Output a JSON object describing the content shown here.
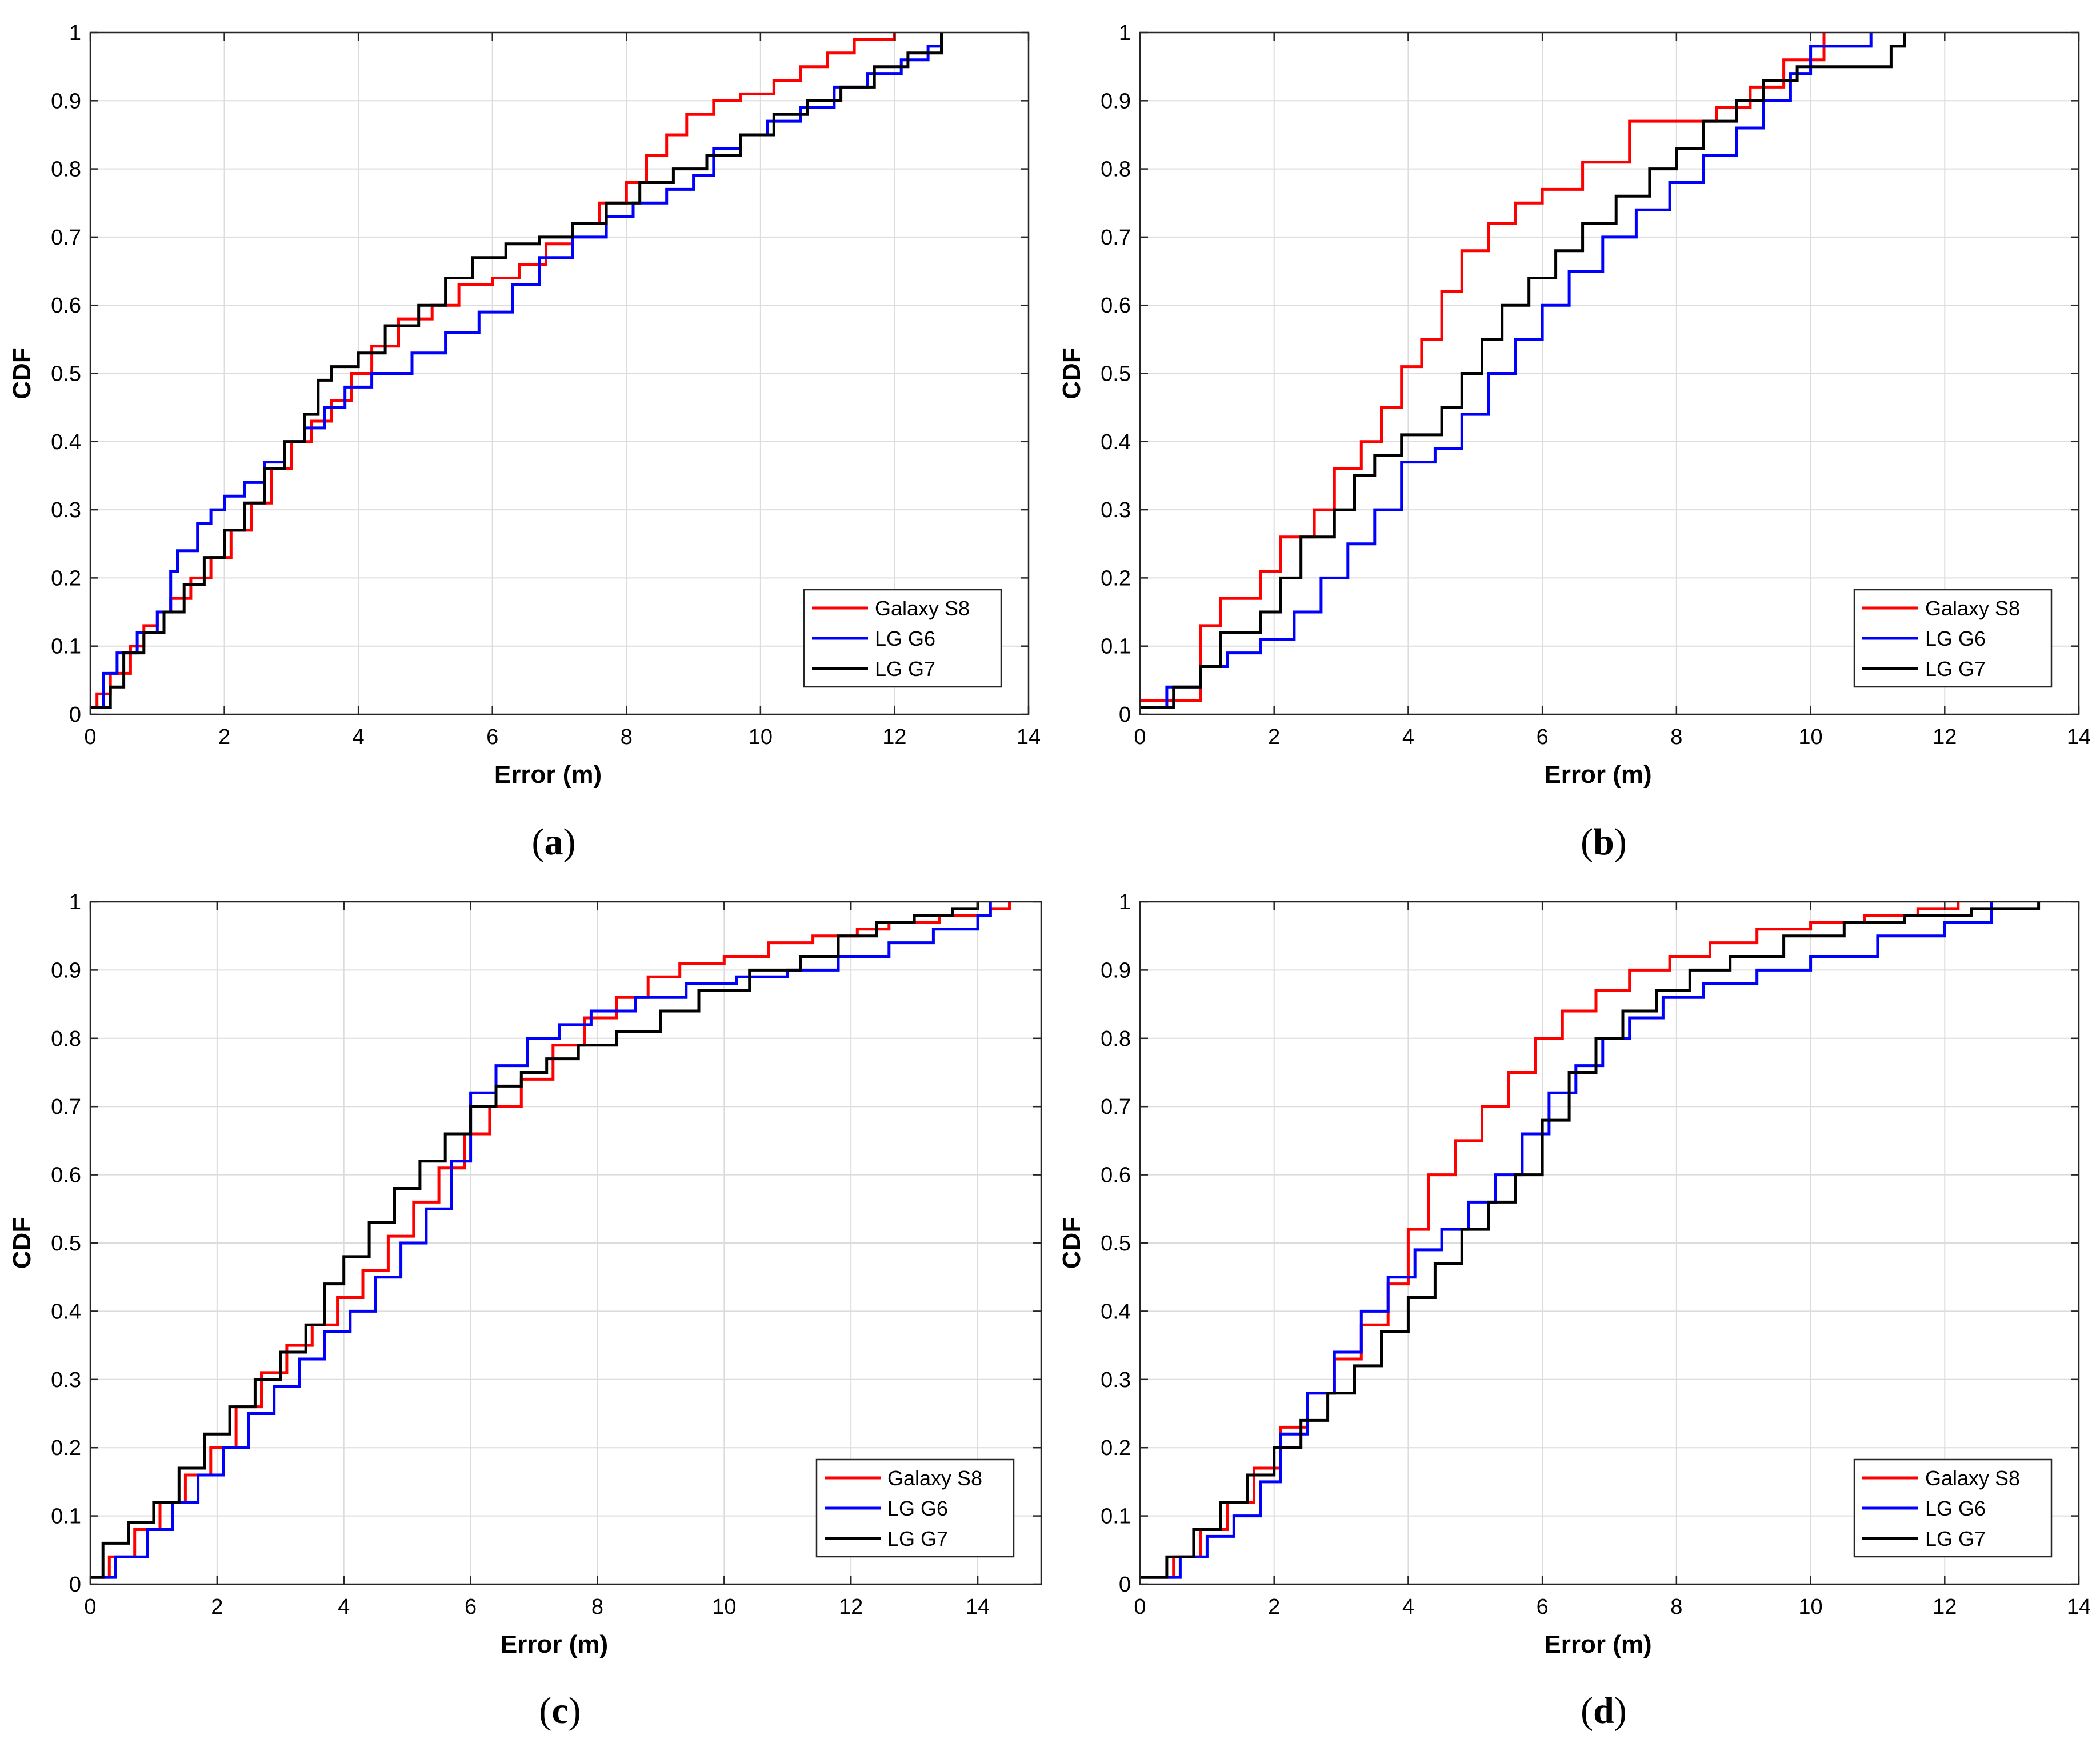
{
  "figure": {
    "series_colors": {
      "Galaxy S8": "#ff0000",
      "LG G6": "#0000ff",
      "LG G7": "#000000"
    },
    "grid": true
  },
  "chart_data": [
    {
      "panel": "a",
      "type": "line",
      "step": true,
      "caption_letter": "a",
      "xlabel": "Error (m)",
      "ylabel": "CDF",
      "xlim": [
        0,
        14
      ],
      "ylim": [
        0,
        1
      ],
      "xticks": [
        "0",
        "2",
        "4",
        "6",
        "8",
        "10",
        "12",
        "14"
      ],
      "yticks": [
        "0",
        "0.1",
        "0.2",
        "0.3",
        "0.4",
        "0.5",
        "0.6",
        "0.7",
        "0.8",
        "0.9",
        "1"
      ],
      "legend_position": "bottom-right",
      "series": [
        {
          "name": "Galaxy S8",
          "x": [
            0,
            0.1,
            0.3,
            0.6,
            0.8,
            1.0,
            1.2,
            1.5,
            1.8,
            2.1,
            2.4,
            2.7,
            3.0,
            3.3,
            3.6,
            3.9,
            4.2,
            4.6,
            5.1,
            5.5,
            6.0,
            6.4,
            6.8,
            7.2,
            7.6,
            8.0,
            8.3,
            8.6,
            8.9,
            9.3,
            9.7,
            10.2,
            10.6,
            11.0,
            11.4,
            11.9,
            12.0
          ],
          "y": [
            0.01,
            0.03,
            0.06,
            0.1,
            0.13,
            0.15,
            0.17,
            0.2,
            0.23,
            0.27,
            0.31,
            0.36,
            0.4,
            0.43,
            0.46,
            0.5,
            0.54,
            0.58,
            0.6,
            0.63,
            0.64,
            0.66,
            0.69,
            0.72,
            0.75,
            0.78,
            0.82,
            0.85,
            0.88,
            0.9,
            0.91,
            0.93,
            0.95,
            0.97,
            0.99,
            0.99,
            1.0
          ]
        },
        {
          "name": "LG G6",
          "x": [
            0,
            0.2,
            0.4,
            0.7,
            1.0,
            1.2,
            1.3,
            1.6,
            1.8,
            2.0,
            2.3,
            2.6,
            2.9,
            3.2,
            3.5,
            3.8,
            4.2,
            4.8,
            5.3,
            5.8,
            6.3,
            6.7,
            7.2,
            7.7,
            8.1,
            8.6,
            9.0,
            9.3,
            9.7,
            10.1,
            10.6,
            11.1,
            11.6,
            12.1,
            12.5,
            12.7
          ],
          "y": [
            0.01,
            0.06,
            0.09,
            0.12,
            0.15,
            0.21,
            0.24,
            0.28,
            0.3,
            0.32,
            0.34,
            0.37,
            0.4,
            0.42,
            0.45,
            0.48,
            0.5,
            0.53,
            0.56,
            0.59,
            0.63,
            0.67,
            0.7,
            0.73,
            0.75,
            0.77,
            0.79,
            0.83,
            0.85,
            0.87,
            0.89,
            0.92,
            0.94,
            0.96,
            0.98,
            1.0
          ]
        },
        {
          "name": "LG G7",
          "x": [
            0,
            0.3,
            0.5,
            0.8,
            1.1,
            1.4,
            1.7,
            2.0,
            2.3,
            2.6,
            2.9,
            3.2,
            3.4,
            3.6,
            4.0,
            4.4,
            4.9,
            5.3,
            5.7,
            6.2,
            6.7,
            7.2,
            7.7,
            8.2,
            8.7,
            9.2,
            9.7,
            10.2,
            10.7,
            11.2,
            11.7,
            12.2,
            12.7
          ],
          "y": [
            0.01,
            0.04,
            0.09,
            0.12,
            0.15,
            0.19,
            0.23,
            0.27,
            0.31,
            0.36,
            0.4,
            0.44,
            0.49,
            0.51,
            0.53,
            0.57,
            0.6,
            0.64,
            0.67,
            0.69,
            0.7,
            0.72,
            0.75,
            0.78,
            0.8,
            0.82,
            0.85,
            0.88,
            0.9,
            0.92,
            0.95,
            0.97,
            1.0
          ]
        }
      ]
    },
    {
      "panel": "b",
      "type": "line",
      "step": true,
      "caption_letter": "b",
      "xlabel": "Error (m)",
      "ylabel": "CDF",
      "xlim": [
        0,
        14
      ],
      "ylim": [
        0,
        1
      ],
      "xticks": [
        "0",
        "2",
        "4",
        "6",
        "8",
        "10",
        "12",
        "14"
      ],
      "yticks": [
        "0",
        "0.1",
        "0.2",
        "0.3",
        "0.4",
        "0.5",
        "0.6",
        "0.7",
        "0.8",
        "0.9",
        "1"
      ],
      "legend_position": "bottom-right",
      "series": [
        {
          "name": "Galaxy S8",
          "x": [
            0,
            0.9,
            1.2,
            1.8,
            2.1,
            2.6,
            2.9,
            3.3,
            3.6,
            3.9,
            4.2,
            4.5,
            4.8,
            5.2,
            5.6,
            6.0,
            6.6,
            7.3,
            8.0,
            8.6,
            9.1,
            9.6,
            10.2
          ],
          "y": [
            0.02,
            0.13,
            0.17,
            0.21,
            0.26,
            0.3,
            0.36,
            0.4,
            0.45,
            0.51,
            0.55,
            0.62,
            0.68,
            0.72,
            0.75,
            0.77,
            0.81,
            0.87,
            0.87,
            0.89,
            0.92,
            0.96,
            1.0
          ]
        },
        {
          "name": "LG G6",
          "x": [
            0,
            0.4,
            0.9,
            1.3,
            1.8,
            2.3,
            2.7,
            3.1,
            3.5,
            3.9,
            4.4,
            4.8,
            5.2,
            5.6,
            6.0,
            6.4,
            6.9,
            7.4,
            7.9,
            8.4,
            8.9,
            9.3,
            9.7,
            10.0,
            10.9
          ],
          "y": [
            0.01,
            0.04,
            0.07,
            0.09,
            0.11,
            0.15,
            0.2,
            0.25,
            0.3,
            0.37,
            0.39,
            0.44,
            0.5,
            0.55,
            0.6,
            0.65,
            0.7,
            0.74,
            0.78,
            0.82,
            0.86,
            0.9,
            0.94,
            0.98,
            1.0
          ]
        },
        {
          "name": "LG G7",
          "x": [
            0,
            0.5,
            0.9,
            1.2,
            1.8,
            2.1,
            2.4,
            2.9,
            3.2,
            3.5,
            3.9,
            4.5,
            4.8,
            5.1,
            5.4,
            5.8,
            6.2,
            6.6,
            7.1,
            7.6,
            8.0,
            8.4,
            8.9,
            9.3,
            9.8,
            10.5,
            11.2,
            11.4
          ],
          "y": [
            0.01,
            0.04,
            0.07,
            0.12,
            0.15,
            0.2,
            0.26,
            0.3,
            0.35,
            0.38,
            0.41,
            0.45,
            0.5,
            0.55,
            0.6,
            0.64,
            0.68,
            0.72,
            0.76,
            0.8,
            0.83,
            0.87,
            0.9,
            0.93,
            0.95,
            0.95,
            0.98,
            1.0
          ]
        }
      ]
    },
    {
      "panel": "c",
      "type": "line",
      "step": true,
      "caption_letter": "c",
      "xlabel": "Error (m)",
      "ylabel": "CDF",
      "xlim": [
        0,
        15
      ],
      "ylim": [
        0,
        1
      ],
      "xticks": [
        "0",
        "2",
        "4",
        "6",
        "8",
        "10",
        "12",
        "14"
      ],
      "yticks": [
        "0",
        "0.1",
        "0.2",
        "0.3",
        "0.4",
        "0.5",
        "0.6",
        "0.7",
        "0.8",
        "0.9",
        "1"
      ],
      "legend_position": "bottom-right",
      "series": [
        {
          "name": "Galaxy S8",
          "x": [
            0,
            0.3,
            0.7,
            1.1,
            1.5,
            1.9,
            2.3,
            2.7,
            3.1,
            3.5,
            3.9,
            4.3,
            4.7,
            5.1,
            5.5,
            5.9,
            6.3,
            6.8,
            7.3,
            7.8,
            8.3,
            8.8,
            9.3,
            10.0,
            10.7,
            11.4,
            12.1,
            12.6,
            13.4,
            14.2,
            14.5
          ],
          "y": [
            0.01,
            0.04,
            0.08,
            0.12,
            0.16,
            0.2,
            0.26,
            0.31,
            0.35,
            0.38,
            0.42,
            0.46,
            0.51,
            0.56,
            0.61,
            0.66,
            0.7,
            0.74,
            0.79,
            0.83,
            0.86,
            0.89,
            0.91,
            0.92,
            0.94,
            0.95,
            0.96,
            0.97,
            0.98,
            0.99,
            1.0
          ]
        },
        {
          "name": "LG G6",
          "x": [
            0,
            0.4,
            0.9,
            1.3,
            1.7,
            2.1,
            2.5,
            2.9,
            3.3,
            3.7,
            4.1,
            4.5,
            4.9,
            5.3,
            5.7,
            6.0,
            6.4,
            6.9,
            7.4,
            7.9,
            8.6,
            9.4,
            10.2,
            11.0,
            11.8,
            12.6,
            13.3,
            14.0,
            14.2
          ],
          "y": [
            0.01,
            0.04,
            0.08,
            0.12,
            0.16,
            0.2,
            0.25,
            0.29,
            0.33,
            0.37,
            0.4,
            0.45,
            0.5,
            0.55,
            0.62,
            0.72,
            0.76,
            0.8,
            0.82,
            0.84,
            0.86,
            0.88,
            0.89,
            0.9,
            0.92,
            0.94,
            0.96,
            0.98,
            1.0
          ]
        },
        {
          "name": "LG G7",
          "x": [
            0,
            0.2,
            0.6,
            1.0,
            1.4,
            1.8,
            2.2,
            2.6,
            3.0,
            3.4,
            3.7,
            4.0,
            4.4,
            4.8,
            5.2,
            5.6,
            6.0,
            6.4,
            6.8,
            7.2,
            7.7,
            8.3,
            9.0,
            9.6,
            10.4,
            11.2,
            11.8,
            12.4,
            13.0,
            13.6,
            14.0
          ],
          "y": [
            0.01,
            0.06,
            0.09,
            0.12,
            0.17,
            0.22,
            0.26,
            0.3,
            0.34,
            0.38,
            0.44,
            0.48,
            0.53,
            0.58,
            0.62,
            0.66,
            0.7,
            0.73,
            0.75,
            0.77,
            0.79,
            0.81,
            0.84,
            0.87,
            0.9,
            0.92,
            0.95,
            0.97,
            0.98,
            0.99,
            1.0
          ]
        }
      ]
    },
    {
      "panel": "d",
      "type": "line",
      "step": true,
      "caption_letter": "d",
      "xlabel": "Error (m)",
      "ylabel": "CDF",
      "xlim": [
        0,
        14
      ],
      "ylim": [
        0,
        1
      ],
      "xticks": [
        "0",
        "2",
        "4",
        "6",
        "8",
        "10",
        "12",
        "14"
      ],
      "yticks": [
        "0",
        "0.1",
        "0.2",
        "0.3",
        "0.4",
        "0.5",
        "0.6",
        "0.7",
        "0.8",
        "0.9",
        "1"
      ],
      "legend_position": "bottom-right",
      "series": [
        {
          "name": "Galaxy S8",
          "x": [
            0,
            0.5,
            0.9,
            1.3,
            1.7,
            2.1,
            2.5,
            2.9,
            3.3,
            3.7,
            4.0,
            4.3,
            4.7,
            5.1,
            5.5,
            5.9,
            6.3,
            6.8,
            7.3,
            7.9,
            8.5,
            9.2,
            10.0,
            10.8,
            11.6,
            12.2
          ],
          "y": [
            0.01,
            0.04,
            0.08,
            0.12,
            0.17,
            0.23,
            0.28,
            0.33,
            0.38,
            0.44,
            0.52,
            0.6,
            0.65,
            0.7,
            0.75,
            0.8,
            0.84,
            0.87,
            0.9,
            0.92,
            0.94,
            0.96,
            0.97,
            0.98,
            0.99,
            1.0
          ]
        },
        {
          "name": "LG G6",
          "x": [
            0,
            0.6,
            1.0,
            1.4,
            1.8,
            2.1,
            2.5,
            2.9,
            3.3,
            3.7,
            4.1,
            4.5,
            4.9,
            5.3,
            5.7,
            6.1,
            6.5,
            6.9,
            7.3,
            7.8,
            8.4,
            9.2,
            10.0,
            11.0,
            12.0,
            12.7
          ],
          "y": [
            0.01,
            0.04,
            0.07,
            0.1,
            0.15,
            0.22,
            0.28,
            0.34,
            0.4,
            0.45,
            0.49,
            0.52,
            0.56,
            0.6,
            0.66,
            0.72,
            0.76,
            0.8,
            0.83,
            0.86,
            0.88,
            0.9,
            0.92,
            0.95,
            0.97,
            1.0
          ]
        },
        {
          "name": "LG G7",
          "x": [
            0,
            0.4,
            0.8,
            1.2,
            1.6,
            2.0,
            2.4,
            2.8,
            3.2,
            3.6,
            4.0,
            4.4,
            4.8,
            5.2,
            5.6,
            6.0,
            6.4,
            6.8,
            7.2,
            7.7,
            8.2,
            8.8,
            9.6,
            10.5,
            11.4,
            12.4,
            13.4
          ],
          "y": [
            0.01,
            0.04,
            0.08,
            0.12,
            0.16,
            0.2,
            0.24,
            0.28,
            0.32,
            0.37,
            0.42,
            0.47,
            0.52,
            0.56,
            0.6,
            0.68,
            0.75,
            0.8,
            0.84,
            0.87,
            0.9,
            0.92,
            0.95,
            0.97,
            0.98,
            0.99,
            1.0
          ]
        }
      ]
    }
  ]
}
